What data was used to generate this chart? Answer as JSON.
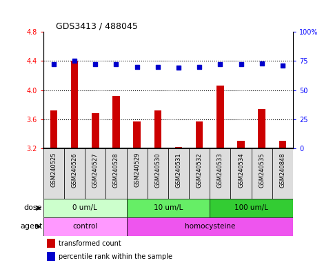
{
  "title": "GDS3413 / 488045",
  "samples": [
    "GSM240525",
    "GSM240526",
    "GSM240527",
    "GSM240528",
    "GSM240529",
    "GSM240530",
    "GSM240531",
    "GSM240532",
    "GSM240533",
    "GSM240534",
    "GSM240535",
    "GSM240848"
  ],
  "bar_values": [
    3.72,
    4.4,
    3.68,
    3.92,
    3.57,
    3.72,
    3.22,
    3.57,
    4.06,
    3.3,
    3.74,
    3.3
  ],
  "dot_values": [
    72,
    75,
    72,
    72,
    70,
    70,
    69,
    70,
    72,
    72,
    73,
    71
  ],
  "bar_color": "#cc0000",
  "dot_color": "#0000cc",
  "ylim_left": [
    3.2,
    4.8
  ],
  "ylim_right": [
    0,
    100
  ],
  "yticks_left": [
    3.2,
    3.6,
    4.0,
    4.4,
    4.8
  ],
  "yticks_right": [
    0,
    25,
    50,
    75,
    100
  ],
  "hlines": [
    3.6,
    4.0,
    4.4
  ],
  "dose_groups": [
    {
      "label": "0 um/L",
      "start": 0,
      "end": 4,
      "color": "#ccffcc"
    },
    {
      "label": "10 um/L",
      "start": 4,
      "end": 8,
      "color": "#66ee66"
    },
    {
      "label": "100 um/L",
      "start": 8,
      "end": 12,
      "color": "#33cc33"
    }
  ],
  "agent_groups": [
    {
      "label": "control",
      "start": 0,
      "end": 4,
      "color": "#ff99ff"
    },
    {
      "label": "homocysteine",
      "start": 4,
      "end": 12,
      "color": "#ee55ee"
    }
  ],
  "legend_red_label": "transformed count",
  "legend_blue_label": "percentile rank within the sample"
}
